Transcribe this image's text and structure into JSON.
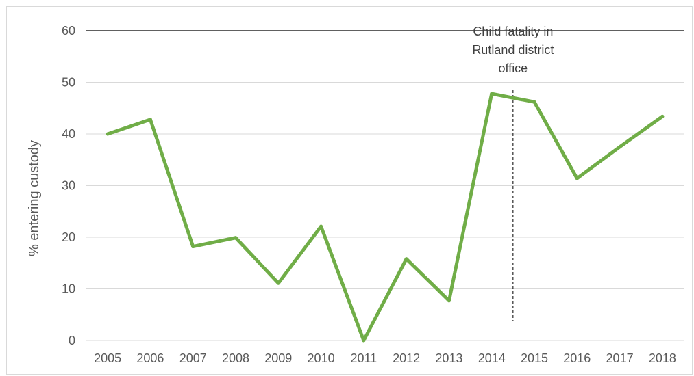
{
  "chart_data": {
    "type": "line",
    "title": "",
    "xlabel": "",
    "ylabel": "% entering custody",
    "categories": [
      "2005",
      "2006",
      "2007",
      "2008",
      "2009",
      "2010",
      "2011",
      "2012",
      "2013",
      "2014",
      "2015",
      "2016",
      "2017",
      "2018"
    ],
    "series": [
      {
        "values": [
          40,
          42.8,
          18.2,
          19.9,
          11.1,
          22.1,
          0,
          15.8,
          7.7,
          47.8,
          46.2,
          31.4,
          37.5,
          43.4
        ]
      }
    ],
    "ylim": [
      0,
      60
    ],
    "yticks": [
      0,
      10,
      20,
      30,
      40,
      50,
      60
    ],
    "grid": true,
    "legend": "none",
    "annotation": {
      "lines": [
        "Child fatality in",
        "Rutland district",
        "office"
      ],
      "x_position": 2014.5
    },
    "colors": {
      "line": "#70ad47",
      "grid": "#d9d9d9",
      "top_rule": "#000000",
      "marker_line": "#000000"
    }
  }
}
